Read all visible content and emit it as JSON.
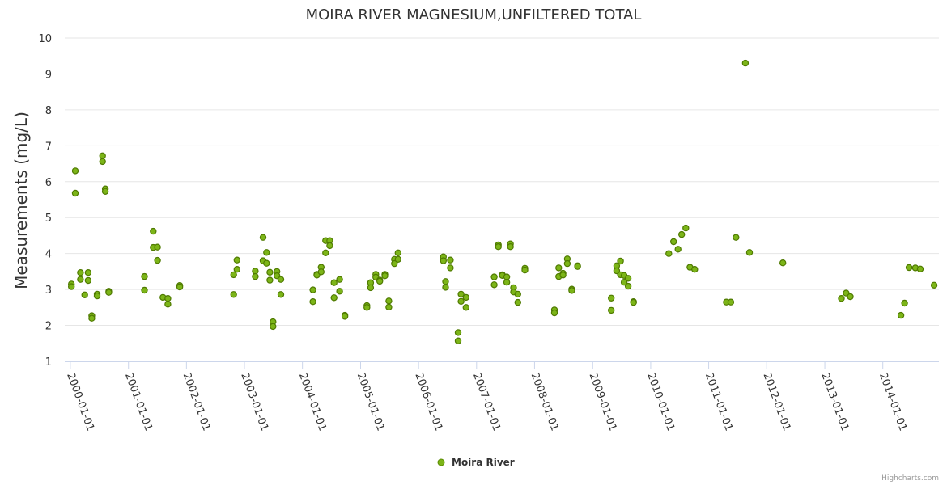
{
  "chart_data": {
    "type": "scatter",
    "title": "MOIRA RIVER MAGNESIUM,UNFILTERED TOTAL",
    "ylabel": "Measurements (mg/L)",
    "xlabel": "",
    "ylim": [
      1,
      10
    ],
    "yticks": [
      "1",
      "2",
      "3",
      "4",
      "5",
      "6",
      "7",
      "8",
      "9",
      "10"
    ],
    "xlim": [
      "1999-11-27",
      "2014-12-20"
    ],
    "xticks": [
      "2000-01-01",
      "2001-01-01",
      "2002-01-01",
      "2003-01-01",
      "2004-01-01",
      "2005-01-01",
      "2006-01-01",
      "2007-01-01",
      "2008-01-01",
      "2009-01-01",
      "2010-01-01",
      "2011-01-01",
      "2012-01-01",
      "2013-01-01",
      "2014-01-01"
    ],
    "grid": true,
    "legend": "bottom-center",
    "series": [
      {
        "name": "Moira River",
        "color": "#7cb518",
        "points": [
          [
            "2000-01-08",
            3.15
          ],
          [
            "2000-01-08",
            3.08
          ],
          [
            "2000-02-01",
            6.3
          ],
          [
            "2000-02-01",
            5.68
          ],
          [
            "2000-03-05",
            3.47
          ],
          [
            "2000-03-05",
            3.28
          ],
          [
            "2000-04-01",
            2.85
          ],
          [
            "2000-04-22",
            3.47
          ],
          [
            "2000-04-22",
            3.25
          ],
          [
            "2000-05-15",
            2.27
          ],
          [
            "2000-05-15",
            2.2
          ],
          [
            "2000-06-18",
            2.87
          ],
          [
            "2000-06-18",
            2.82
          ],
          [
            "2000-07-22",
            6.72
          ],
          [
            "2000-07-22",
            6.56
          ],
          [
            "2000-08-08",
            5.8
          ],
          [
            "2000-08-08",
            5.73
          ],
          [
            "2000-08-30",
            2.95
          ],
          [
            "2000-08-30",
            2.92
          ],
          [
            "2001-04-12",
            3.36
          ],
          [
            "2001-04-12",
            2.98
          ],
          [
            "2001-06-06",
            4.62
          ],
          [
            "2001-06-06",
            4.17
          ],
          [
            "2001-07-03",
            4.18
          ],
          [
            "2001-07-03",
            3.81
          ],
          [
            "2001-08-06",
            2.78
          ],
          [
            "2001-09-06",
            2.75
          ],
          [
            "2001-09-06",
            2.59
          ],
          [
            "2001-11-20",
            3.11
          ],
          [
            "2001-11-20",
            3.07
          ],
          [
            "2002-10-25",
            3.41
          ],
          [
            "2002-10-25",
            2.86
          ],
          [
            "2002-11-15",
            3.82
          ],
          [
            "2002-11-15",
            3.56
          ],
          [
            "2003-03-10",
            3.51
          ],
          [
            "2003-03-10",
            3.36
          ],
          [
            "2003-04-28",
            4.45
          ],
          [
            "2003-04-28",
            3.8
          ],
          [
            "2003-05-20",
            4.03
          ],
          [
            "2003-05-20",
            3.73
          ],
          [
            "2003-06-10",
            3.48
          ],
          [
            "2003-06-10",
            3.26
          ],
          [
            "2003-06-30",
            2.1
          ],
          [
            "2003-06-30",
            1.97
          ],
          [
            "2003-07-25",
            3.5
          ],
          [
            "2003-07-25",
            3.38
          ],
          [
            "2003-08-18",
            3.28
          ],
          [
            "2003-08-18",
            2.86
          ],
          [
            "2004-03-07",
            2.99
          ],
          [
            "2004-03-07",
            2.66
          ],
          [
            "2004-04-01",
            3.42
          ],
          [
            "2004-04-01",
            3.4
          ],
          [
            "2004-04-28",
            3.62
          ],
          [
            "2004-04-28",
            3.49
          ],
          [
            "2004-05-26",
            4.36
          ],
          [
            "2004-05-26",
            4.02
          ],
          [
            "2004-06-21",
            4.36
          ],
          [
            "2004-06-21",
            4.22
          ],
          [
            "2004-07-18",
            3.19
          ],
          [
            "2004-07-18",
            2.77
          ],
          [
            "2004-08-22",
            3.28
          ],
          [
            "2004-08-22",
            2.95
          ],
          [
            "2004-09-24",
            2.28
          ],
          [
            "2004-09-24",
            2.25
          ],
          [
            "2005-02-10",
            2.55
          ],
          [
            "2005-02-10",
            2.5
          ],
          [
            "2005-03-05",
            3.19
          ],
          [
            "2005-03-05",
            3.05
          ],
          [
            "2005-04-07",
            3.42
          ],
          [
            "2005-04-07",
            3.34
          ],
          [
            "2005-05-02",
            3.26
          ],
          [
            "2005-05-02",
            3.23
          ],
          [
            "2005-06-03",
            3.42
          ],
          [
            "2005-06-03",
            3.38
          ],
          [
            "2005-06-28",
            2.68
          ],
          [
            "2005-06-28",
            2.51
          ],
          [
            "2005-08-02",
            3.84
          ],
          [
            "2005-08-02",
            3.72
          ],
          [
            "2005-08-25",
            4.02
          ],
          [
            "2005-08-25",
            3.84
          ],
          [
            "2006-06-06",
            3.91
          ],
          [
            "2006-06-06",
            3.8
          ],
          [
            "2006-06-20",
            3.22
          ],
          [
            "2006-06-20",
            3.06
          ],
          [
            "2006-07-20",
            3.82
          ],
          [
            "2006-07-20",
            3.6
          ],
          [
            "2006-09-07",
            1.8
          ],
          [
            "2006-09-07",
            1.57
          ],
          [
            "2006-09-25",
            2.87
          ],
          [
            "2006-09-25",
            2.67
          ],
          [
            "2006-10-27",
            2.78
          ],
          [
            "2006-10-27",
            2.5
          ],
          [
            "2007-04-22",
            3.35
          ],
          [
            "2007-04-22",
            3.13
          ],
          [
            "2007-05-18",
            4.24
          ],
          [
            "2007-05-18",
            4.19
          ],
          [
            "2007-06-12",
            3.41
          ],
          [
            "2007-06-12",
            3.39
          ],
          [
            "2007-07-10",
            3.35
          ],
          [
            "2007-07-10",
            3.2
          ],
          [
            "2007-08-02",
            4.27
          ],
          [
            "2007-08-02",
            4.19
          ],
          [
            "2007-08-22",
            3.05
          ],
          [
            "2007-08-22",
            2.93
          ],
          [
            "2007-09-18",
            2.87
          ],
          [
            "2007-09-18",
            2.64
          ],
          [
            "2007-11-01",
            3.59
          ],
          [
            "2007-11-01",
            3.54
          ],
          [
            "2008-05-05",
            2.43
          ],
          [
            "2008-05-05",
            2.35
          ],
          [
            "2008-06-01",
            3.6
          ],
          [
            "2008-06-01",
            3.36
          ],
          [
            "2008-06-28",
            3.45
          ],
          [
            "2008-06-28",
            3.4
          ],
          [
            "2008-07-25",
            3.85
          ],
          [
            "2008-07-25",
            3.72
          ],
          [
            "2008-08-22",
            3.01
          ],
          [
            "2008-08-22",
            2.97
          ],
          [
            "2008-09-28",
            3.66
          ],
          [
            "2008-09-28",
            3.64
          ],
          [
            "2009-04-28",
            2.76
          ],
          [
            "2009-04-28",
            2.42
          ],
          [
            "2009-06-01",
            3.66
          ],
          [
            "2009-06-01",
            3.52
          ],
          [
            "2009-06-25",
            3.79
          ],
          [
            "2009-06-25",
            3.41
          ],
          [
            "2009-07-18",
            3.39
          ],
          [
            "2009-07-18",
            3.2
          ],
          [
            "2009-08-12",
            3.31
          ],
          [
            "2009-08-12",
            3.09
          ],
          [
            "2009-09-15",
            2.66
          ],
          [
            "2009-09-15",
            2.64
          ],
          [
            "2010-04-25",
            4.0
          ],
          [
            "2010-05-25",
            4.33
          ],
          [
            "2010-06-22",
            4.12
          ],
          [
            "2010-07-15",
            4.53
          ],
          [
            "2010-08-10",
            4.71
          ],
          [
            "2010-09-05",
            3.62
          ],
          [
            "2010-10-05",
            3.56
          ],
          [
            "2011-04-22",
            2.65
          ],
          [
            "2011-05-20",
            2.65
          ],
          [
            "2011-06-22",
            4.45
          ],
          [
            "2011-08-20",
            9.3
          ],
          [
            "2011-09-15",
            4.03
          ],
          [
            "2012-04-12",
            3.74
          ],
          [
            "2013-04-15",
            2.75
          ],
          [
            "2013-05-15",
            2.9
          ],
          [
            "2013-06-10",
            2.8
          ],
          [
            "2014-04-25",
            2.28
          ],
          [
            "2014-05-18",
            2.62
          ],
          [
            "2014-06-15",
            3.61
          ],
          [
            "2014-07-25",
            3.6
          ],
          [
            "2014-08-25",
            3.57
          ],
          [
            "2014-11-20",
            3.12
          ]
        ]
      }
    ]
  },
  "credits": "Highcharts.com"
}
